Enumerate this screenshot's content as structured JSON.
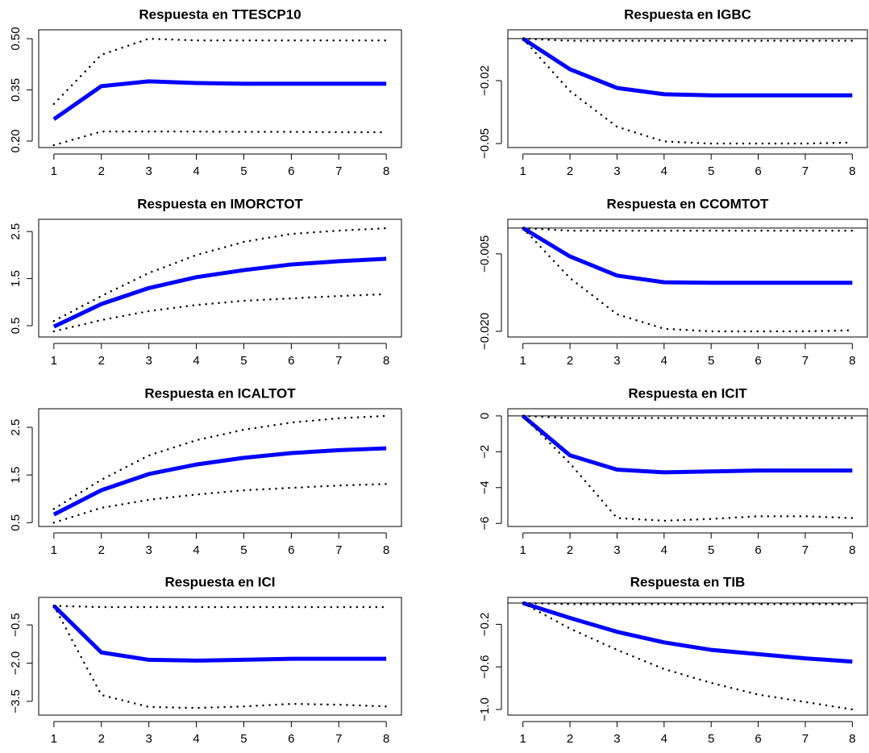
{
  "chart_data": [
    {
      "type": "line",
      "title": "Respuesta en TTESCP10",
      "x": [
        1,
        2,
        3,
        4,
        5,
        6,
        7,
        8
      ],
      "xlim": [
        0.68,
        8.32
      ],
      "xticks": [
        1,
        2,
        3,
        4,
        5,
        6,
        7,
        8
      ],
      "ylim": [
        0.181,
        0.526
      ],
      "yticks": [
        {
          "value": 0.2,
          "label": "0.20"
        },
        0.35,
        {
          "value": 0.5,
          "label": "0.50"
        }
      ],
      "series": [
        {
          "color": "#0000ff",
          "style": "solid",
          "values": [
            0.264,
            0.361,
            0.375,
            0.37,
            0.368,
            0.368,
            0.368,
            0.368
          ]
        },
        {
          "color": "#000000",
          "style": "dotted",
          "values": [
            0.309,
            0.453,
            0.5,
            0.495,
            0.495,
            0.495,
            0.495,
            0.495
          ]
        },
        {
          "color": "#000000",
          "style": "dotted",
          "values": [
            0.188,
            0.228,
            0.228,
            0.228,
            0.227,
            0.227,
            0.226,
            0.226
          ]
        }
      ]
    },
    {
      "type": "line",
      "title": "Respuesta en IGBC",
      "x": [
        1,
        2,
        3,
        4,
        5,
        6,
        7,
        8
      ],
      "xlim": [
        0.68,
        8.32
      ],
      "xticks": [
        1,
        2,
        3,
        4,
        5,
        6,
        7,
        8
      ],
      "ylim": [
        -0.0519,
        0.0042
      ],
      "yticks": [
        {
          "value": -0.05,
          "label": "−0.05"
        },
        {
          "value": -0.02,
          "label": "−0.02"
        }
      ],
      "hline": 0,
      "series": [
        {
          "color": "#0000ff",
          "style": "solid",
          "values": [
            0,
            -0.0146,
            -0.0235,
            -0.0265,
            -0.027,
            -0.027,
            -0.027,
            -0.027
          ]
        },
        {
          "color": "#000000",
          "style": "dotted",
          "values": [
            0,
            -0.001,
            -0.001,
            -0.001,
            -0.001,
            -0.001,
            -0.001,
            -0.001
          ]
        },
        {
          "color": "#000000",
          "style": "dotted",
          "values": [
            0,
            -0.025,
            -0.042,
            -0.049,
            -0.05,
            -0.05,
            -0.05,
            -0.0495
          ]
        }
      ]
    },
    {
      "type": "line",
      "title": "Respuesta en IMORCTOT",
      "x": [
        1,
        2,
        3,
        4,
        5,
        6,
        7,
        8
      ],
      "xlim": [
        0.68,
        8.32
      ],
      "xticks": [
        1,
        2,
        3,
        4,
        5,
        6,
        7,
        8
      ],
      "ylim": [
        0.26,
        2.76
      ],
      "yticks": [
        0.5,
        1.5,
        2.5
      ],
      "series": [
        {
          "color": "#0000ff",
          "style": "solid",
          "values": [
            0.48,
            0.96,
            1.3,
            1.53,
            1.68,
            1.8,
            1.87,
            1.92
          ]
        },
        {
          "color": "#000000",
          "style": "dotted",
          "values": [
            0.6,
            1.13,
            1.62,
            2.0,
            2.28,
            2.45,
            2.52,
            2.57
          ]
        },
        {
          "color": "#000000",
          "style": "dotted",
          "values": [
            0.38,
            0.62,
            0.81,
            0.94,
            1.03,
            1.08,
            1.13,
            1.17
          ]
        }
      ]
    },
    {
      "type": "line",
      "title": "Respuesta en CCOMTOT",
      "x": [
        1,
        2,
        3,
        4,
        5,
        6,
        7,
        8
      ],
      "xlim": [
        0.68,
        8.32
      ],
      "xticks": [
        1,
        2,
        3,
        4,
        5,
        6,
        7,
        8
      ],
      "ylim": [
        -0.0211,
        0.0017
      ],
      "yticks": [
        {
          "value": -0.02,
          "label": "−0.020"
        },
        {
          "value": -0.005,
          "label": "−0.005"
        }
      ],
      "hline": 0,
      "series": [
        {
          "color": "#0000ff",
          "style": "solid",
          "values": [
            0,
            -0.0055,
            -0.0092,
            -0.0105,
            -0.0106,
            -0.0106,
            -0.0106,
            -0.0106
          ]
        },
        {
          "color": "#000000",
          "style": "dotted",
          "values": [
            0,
            -0.0005,
            -0.0005,
            -0.0005,
            -0.0005,
            -0.0005,
            -0.0005,
            -0.0005
          ]
        },
        {
          "color": "#000000",
          "style": "dotted",
          "values": [
            0,
            -0.0097,
            -0.0167,
            -0.0195,
            -0.02,
            -0.02,
            -0.02,
            -0.0198
          ]
        }
      ]
    },
    {
      "type": "line",
      "title": "Respuesta en ICALTOT",
      "x": [
        1,
        2,
        3,
        4,
        5,
        6,
        7,
        8
      ],
      "xlim": [
        0.68,
        8.32
      ],
      "xticks": [
        1,
        2,
        3,
        4,
        5,
        6,
        7,
        8
      ],
      "ylim": [
        0.42,
        2.89
      ],
      "yticks": [
        0.5,
        1.5,
        2.5
      ],
      "series": [
        {
          "color": "#0000ff",
          "style": "solid",
          "values": [
            0.67,
            1.18,
            1.52,
            1.72,
            1.86,
            1.96,
            2.02,
            2.06
          ]
        },
        {
          "color": "#000000",
          "style": "dotted",
          "values": [
            0.79,
            1.4,
            1.91,
            2.23,
            2.45,
            2.6,
            2.69,
            2.74
          ]
        },
        {
          "color": "#000000",
          "style": "dotted",
          "values": [
            0.5,
            0.81,
            0.98,
            1.09,
            1.18,
            1.23,
            1.28,
            1.31
          ]
        }
      ]
    },
    {
      "type": "line",
      "title": "Respuesta en ICIT",
      "x": [
        1,
        2,
        3,
        4,
        5,
        6,
        7,
        8
      ],
      "xlim": [
        0.68,
        8.32
      ],
      "xticks": [
        1,
        2,
        3,
        4,
        5,
        6,
        7,
        8
      ],
      "ylim": [
        -6.17,
        0.4
      ],
      "yticks": [
        {
          "value": -6,
          "label": "−6"
        },
        {
          "value": -4,
          "label": "−4"
        },
        {
          "value": -2,
          "label": "−2"
        },
        0
      ],
      "hline": 0,
      "series": [
        {
          "color": "#0000ff",
          "style": "solid",
          "values": [
            0,
            -2.2,
            -3.0,
            -3.15,
            -3.1,
            -3.05,
            -3.05,
            -3.05
          ]
        },
        {
          "color": "#000000",
          "style": "dotted",
          "values": [
            0,
            -0.12,
            -0.12,
            -0.12,
            -0.12,
            -0.12,
            -0.12,
            -0.12
          ]
        },
        {
          "color": "#000000",
          "style": "dotted",
          "values": [
            0,
            -2.65,
            -5.7,
            -5.85,
            -5.75,
            -5.6,
            -5.6,
            -5.7
          ]
        }
      ]
    },
    {
      "type": "line",
      "title": "Respuesta en ICI",
      "x": [
        1,
        2,
        3,
        4,
        5,
        6,
        7,
        8
      ],
      "xlim": [
        0.68,
        8.32
      ],
      "xticks": [
        1,
        2,
        3,
        4,
        5,
        6,
        7,
        8
      ],
      "ylim": [
        -4.04,
        0.58
      ],
      "yticks": [
        {
          "value": -3.5,
          "label": "−3.5"
        },
        {
          "value": -2.0,
          "label": "−2.0"
        },
        {
          "value": -0.5,
          "label": "−0.5"
        }
      ],
      "series": [
        {
          "color": "#0000ff",
          "style": "solid",
          "values": [
            0.25,
            -1.58,
            -1.87,
            -1.9,
            -1.87,
            -1.83,
            -1.83,
            -1.83
          ]
        },
        {
          "color": "#000000",
          "style": "dotted",
          "values": [
            0.25,
            0.2,
            0.2,
            0.2,
            0.2,
            0.2,
            0.2,
            0.2
          ]
        },
        {
          "color": "#000000",
          "style": "dotted",
          "values": [
            0.25,
            -3.25,
            -3.72,
            -3.76,
            -3.7,
            -3.6,
            -3.63,
            -3.7
          ]
        }
      ]
    },
    {
      "type": "line",
      "title": "Respuesta en TIB",
      "x": [
        1,
        2,
        3,
        4,
        5,
        6,
        7,
        8
      ],
      "xlim": [
        0.68,
        8.32
      ],
      "xticks": [
        1,
        2,
        3,
        4,
        5,
        6,
        7,
        8
      ],
      "ylim": [
        -1.053,
        0.053
      ],
      "yticks": [
        {
          "value": -1.0,
          "label": "−1.0"
        },
        {
          "value": -0.6,
          "label": "−0.6"
        },
        {
          "value": -0.2,
          "label": "−0.2"
        }
      ],
      "hline": 0,
      "series": [
        {
          "color": "#0000ff",
          "style": "solid",
          "values": [
            0,
            -0.14,
            -0.27,
            -0.37,
            -0.44,
            -0.48,
            -0.52,
            -0.55
          ]
        },
        {
          "color": "#000000",
          "style": "dotted",
          "values": [
            0,
            -0.01,
            -0.01,
            -0.01,
            -0.01,
            -0.01,
            -0.01,
            -0.01
          ]
        },
        {
          "color": "#000000",
          "style": "dotted",
          "values": [
            0,
            -0.24,
            -0.44,
            -0.62,
            -0.75,
            -0.86,
            -0.93,
            -1.0
          ]
        }
      ]
    }
  ]
}
